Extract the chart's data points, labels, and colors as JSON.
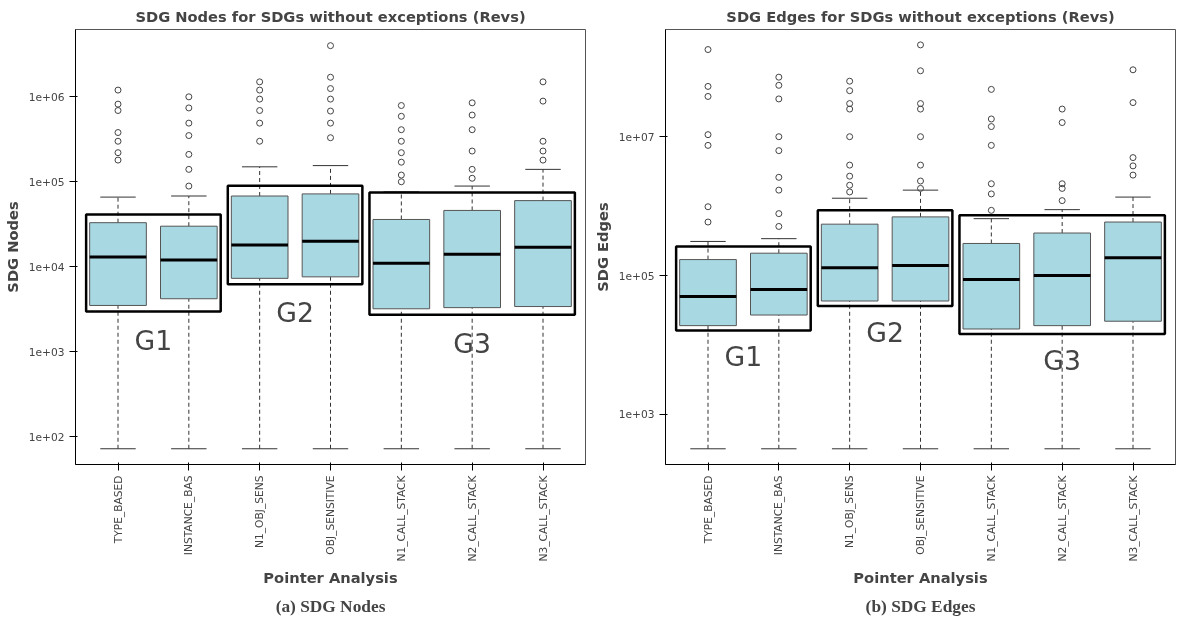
{
  "chart_data": [
    {
      "type": "box",
      "title": "SDG Nodes for SDGs without exceptions (Revs)",
      "xlabel": "Pointer Analysis",
      "ylabel": "SDG Nodes",
      "categories": [
        "TYPE_BASED",
        "INSTANCE_BAS",
        "N1_OBJ_SENS",
        "OBJ_SENSITIVE",
        "N1_CALL_STACK",
        "N2_CALL_STACK",
        "N3_CALL_STACK"
      ],
      "series": [
        {
          "color": "#a8d8e2",
          "boxes": [
            {
              "low": 72,
              "q1": 3500,
              "median": 13000,
              "q3": 33000,
              "high": 66000,
              "outliers": [
                1200000,
                820000,
                690000,
                380000,
                300000,
                220000,
                180000
              ]
            },
            {
              "low": 72,
              "q1": 4200,
              "median": 12000,
              "q3": 30000,
              "high": 68000,
              "outliers": [
                1000000,
                740000,
                490000,
                350000,
                210000,
                140000,
                89000
              ]
            },
            {
              "low": 72,
              "q1": 7300,
              "median": 18000,
              "q3": 68000,
              "high": 150000,
              "outliers": [
                1500000,
                1200000,
                940000,
                690000,
                490000,
                300000
              ]
            },
            {
              "low": 72,
              "q1": 7600,
              "median": 20000,
              "q3": 72000,
              "high": 155000,
              "outliers": [
                4000000,
                1700000,
                1250000,
                940000,
                680000,
                490000,
                330000
              ]
            },
            {
              "low": 72,
              "q1": 3200,
              "median": 11000,
              "q3": 36000,
              "high": 76000,
              "outliers": [
                790000,
                590000,
                410000,
                300000,
                220000,
                170000,
                120000,
                100000
              ]
            },
            {
              "low": 72,
              "q1": 3300,
              "median": 14000,
              "q3": 46000,
              "high": 89000,
              "outliers": [
                850000,
                610000,
                410000,
                230000,
                140000,
                110000
              ]
            },
            {
              "low": 72,
              "q1": 3400,
              "median": 17000,
              "q3": 60000,
              "high": 140000,
              "outliers": [
                1500000,
                890000,
                300000,
                230000,
                180000
              ]
            }
          ]
        }
      ],
      "ylim": [
        47,
        6200000
      ],
      "yticks": [
        {
          "value": 100,
          "label": "1e+02"
        },
        {
          "value": 1000,
          "label": "1e+03"
        },
        {
          "value": 10000,
          "label": "1e+04"
        },
        {
          "value": 100000,
          "label": "1e+05"
        },
        {
          "value": 1000000,
          "label": "1e+06"
        }
      ],
      "log": true,
      "annotations": [
        "G1",
        "G2",
        "G3",
        "(a) SDG Nodes"
      ]
    },
    {
      "type": "box",
      "title": "SDG Edges for SDGs without exceptions (Revs)",
      "xlabel": "Pointer Analysis",
      "ylabel": "SDG Edges",
      "categories": [
        "TYPE_BASED",
        "INSTANCE_BAS",
        "N1_OBJ_SENS",
        "OBJ_SENSITIVE",
        "N1_CALL_STACK",
        "N2_CALL_STACK",
        "N3_CALL_STACK"
      ],
      "series": [
        {
          "color": "#a8d8e2",
          "boxes": [
            {
              "low": 320,
              "q1": 19000,
              "median": 50000,
              "q3": 170000,
              "high": 310000,
              "outliers": [
                180000000,
                53000000,
                38000000,
                10700000,
                7500000,
                980000,
                590000
              ]
            },
            {
              "low": 320,
              "q1": 27000,
              "median": 63000,
              "q3": 210000,
              "high": 340000,
              "outliers": [
                72000000,
                55000000,
                35000000,
                10000000,
                6300000,
                2600000,
                1700000,
                780000,
                510000
              ]
            },
            {
              "low": 320,
              "q1": 43000,
              "median": 130000,
              "q3": 550000,
              "high": 1300000,
              "outliers": [
                63000000,
                46000000,
                30000000,
                25000000,
                10000000,
                3900000,
                2700000,
                2000000,
                1600000
              ]
            },
            {
              "low": 320,
              "q1": 43000,
              "median": 140000,
              "q3": 700000,
              "high": 1700000,
              "outliers": [
                210000000,
                89000000,
                30000000,
                25000000,
                10000000,
                3900000,
                2300000,
                1800000
              ]
            },
            {
              "low": 320,
              "q1": 17000,
              "median": 88000,
              "q3": 290000,
              "high": 660000,
              "outliers": [
                48000000,
                18000000,
                14000000,
                7500000,
                2100000,
                1500000,
                870000
              ]
            },
            {
              "low": 320,
              "q1": 19000,
              "median": 100000,
              "q3": 410000,
              "high": 890000,
              "outliers": [
                25000000,
                16000000,
                2100000,
                1800000,
                1200000
              ]
            },
            {
              "low": 320,
              "q1": 22000,
              "median": 180000,
              "q3": 590000,
              "high": 1350000,
              "outliers": [
                92000000,
                31000000,
                5000000,
                3800000,
                2800000
              ]
            }
          ]
        }
      ],
      "ylim": [
        190,
        350000000
      ],
      "yticks": [
        {
          "value": 1000,
          "label": "1e+03"
        },
        {
          "value": 100000,
          "label": "1e+05"
        },
        {
          "value": 10000000,
          "label": "1e+07"
        }
      ],
      "log": true,
      "annotations": [
        "G1",
        "G2",
        "G3",
        "(b) SDG Edges"
      ]
    }
  ]
}
